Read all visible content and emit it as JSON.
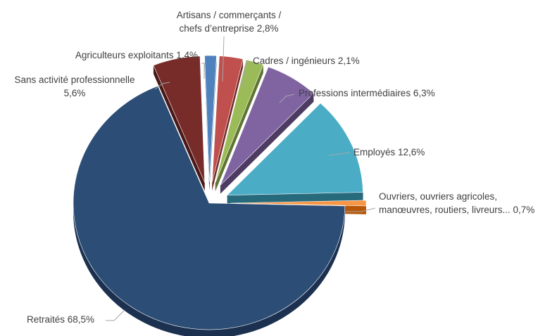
{
  "chart_data": {
    "type": "pie",
    "style": "3d-exploded",
    "slices": [
      {
        "label": "Agriculteurs exploitants 1,4%",
        "value": 1.4,
        "color": "#4f81bd",
        "side": "#2c4d75"
      },
      {
        "label": "Artisans / commerçants / chefs d’entreprise 2,8%",
        "value": 2.8,
        "color": "#c0504d",
        "side": "#772c2a"
      },
      {
        "label": "Cadres / ingénieurs 2,1%",
        "value": 2.1,
        "color": "#9bbb59",
        "side": "#5f7530"
      },
      {
        "label": "Professions intermédiaires 6,3%",
        "value": 6.3,
        "color": "#8064a2",
        "side": "#4d3b62"
      },
      {
        "label": "Employés 12,6%",
        "value": 12.6,
        "color": "#4bacc6",
        "side": "#276a7c"
      },
      {
        "label": "Ouvriers, ouvriers agricoles, manœuvres, routiers, livreurs... 0,7%",
        "value": 0.7,
        "color": "#f79646",
        "side": "#b65708"
      },
      {
        "label": "Retraités 68,5%",
        "value": 68.5,
        "color": "#2c4d75",
        "side": "#1c3150"
      },
      {
        "label": "Sans activité professionnelle 5,6%",
        "value": 5.6,
        "color": "#772c2a",
        "side": "#4a1817"
      }
    ],
    "labels": {
      "agri": "Agriculteurs exploitants 1,4%",
      "artisans_1": "Artisans / commerçants /",
      "artisans_2": "chefs d’entreprise 2,8%",
      "cadres": "Cadres / ingénieurs 2,1%",
      "prof": "Professions intermédiaires 6,3%",
      "employes": "Employés 12,6%",
      "ouvriers_1": "Ouvriers, ouvriers agricoles,",
      "ouvriers_2": "manœuvres, routiers, livreurs... 0,7%",
      "retraites": "Retraités 68,5%",
      "sans_1": "Sans activité professionnelle",
      "sans_2": "5,6%"
    }
  }
}
